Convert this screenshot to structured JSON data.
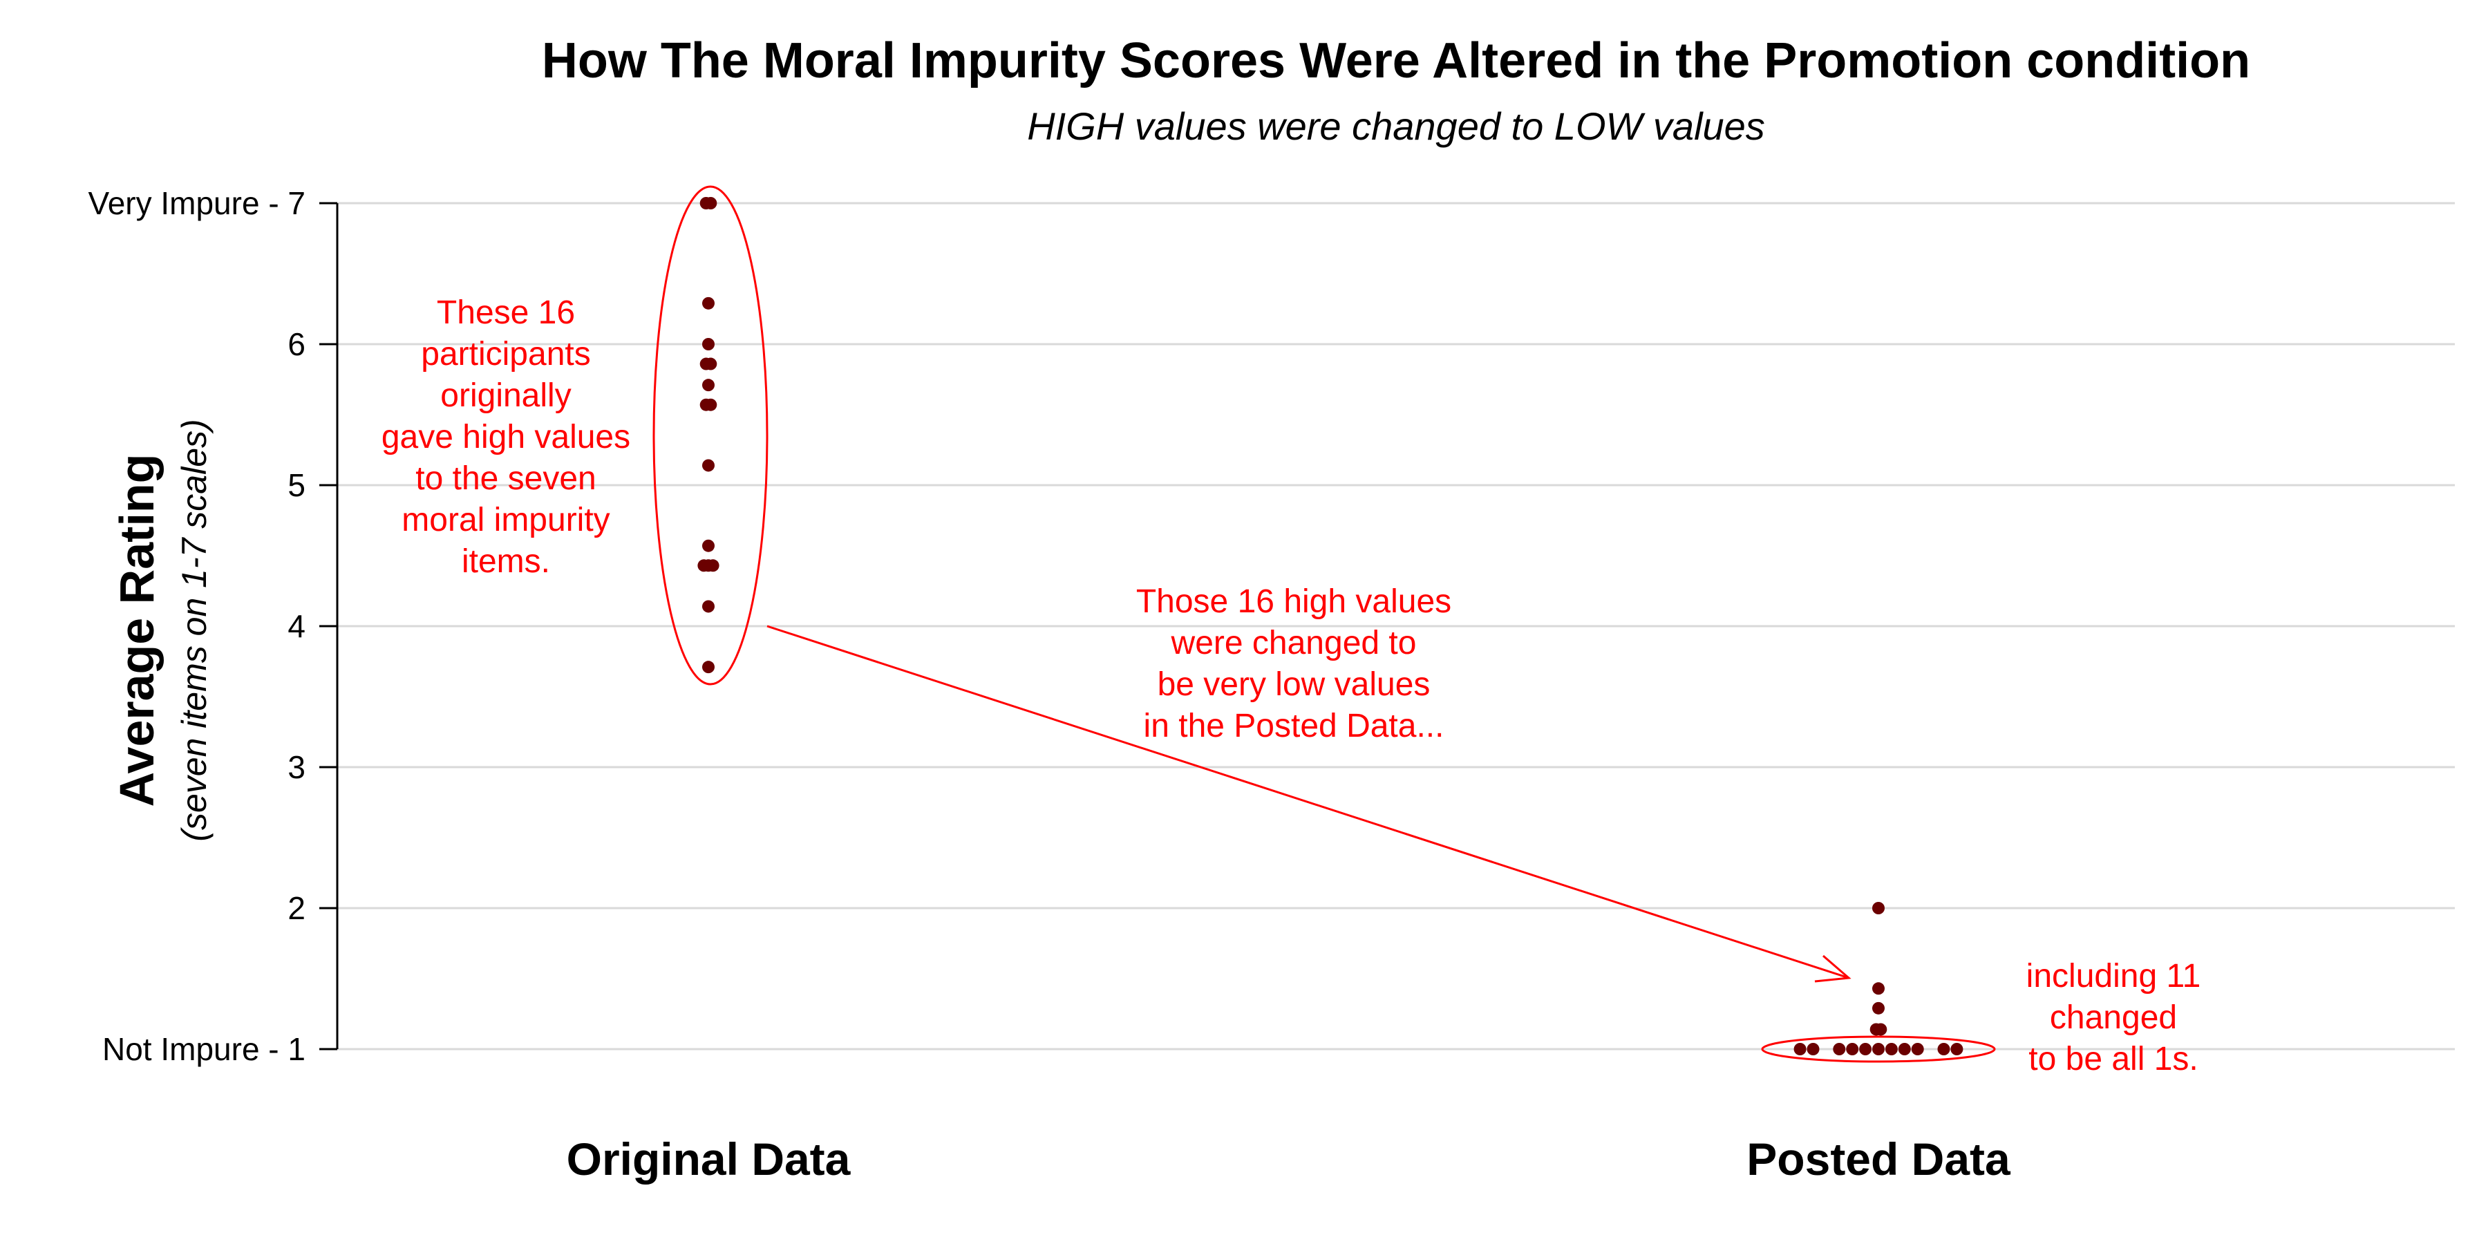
{
  "chart_data": {
    "type": "scatter",
    "title": "How The Moral Impurity Scores Were Altered in the Promotion condition",
    "subtitle": "HIGH values were changed to LOW values",
    "ylabel": "Average Rating",
    "ylabel_sub": "(seven items on 1-7 scales)",
    "ylim": [
      1,
      7
    ],
    "grid": true,
    "categories": [
      "Original Data",
      "Posted Data"
    ],
    "y_ticks": [
      {
        "value": 7,
        "label": "Very Impure - 7"
      },
      {
        "value": 6,
        "label": "6"
      },
      {
        "value": 5,
        "label": "5"
      },
      {
        "value": 4,
        "label": "4"
      },
      {
        "value": 3,
        "label": "3"
      },
      {
        "value": 2,
        "label": "2"
      },
      {
        "value": 1,
        "label": "Not Impure - 1"
      }
    ],
    "series": [
      {
        "category": "Original Data",
        "values": [
          7.0,
          7.0,
          6.29,
          6.0,
          5.86,
          5.86,
          5.71,
          5.57,
          5.57,
          5.14,
          4.57,
          4.43,
          4.43,
          4.43,
          4.14,
          3.71
        ]
      },
      {
        "category": "Posted Data",
        "values": [
          2.0,
          1.43,
          1.29,
          1.14,
          1.14,
          1.0,
          1.0,
          1.0,
          1.0,
          1.0,
          1.0,
          1.0,
          1.0,
          1.0,
          1.0,
          1.0
        ]
      }
    ],
    "annotations": {
      "left_note": [
        "These 16",
        "participants",
        "originally",
        "gave high values",
        "to the seven",
        "moral impurity",
        "items."
      ],
      "arrow_note": [
        "Those 16 high values",
        "were changed to",
        "be very low values",
        "in the Posted Data..."
      ],
      "right_note": [
        "including 11",
        "changed",
        "to be all 1s."
      ]
    },
    "colors": {
      "point": "#6b0000",
      "annotation": "#ff0000",
      "grid": "#d9d9d9",
      "axis": "#000000"
    }
  }
}
